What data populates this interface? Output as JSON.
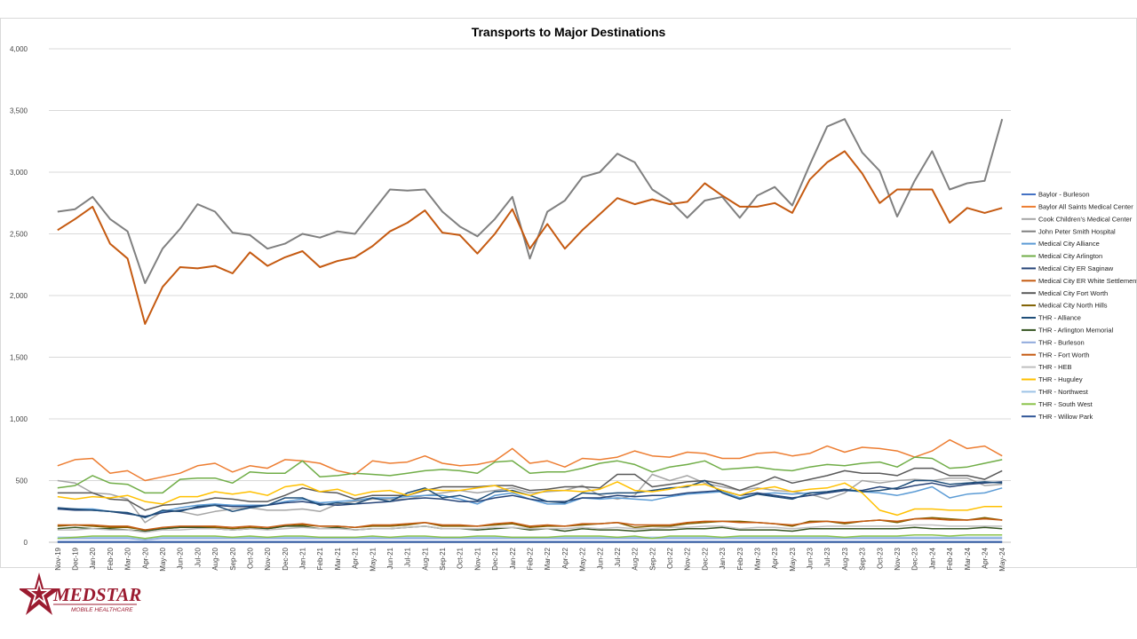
{
  "chart_data": {
    "type": "line",
    "title": "Transports to Major Destinations",
    "ylim": [
      0,
      4000
    ],
    "yticks": [
      "0",
      "500",
      "1,000",
      "1,500",
      "2,000",
      "2,500",
      "3,000",
      "3,500",
      "4,000"
    ],
    "ytick_values": [
      0,
      500,
      1000,
      1500,
      2000,
      2500,
      3000,
      3500,
      4000
    ],
    "grid": true,
    "legend_position": "right",
    "categories": [
      "Nov-19",
      "Dec-19",
      "Jan-20",
      "Feb-20",
      "Mar-20",
      "Apr-20",
      "May-20",
      "Jun-20",
      "Jul-20",
      "Aug-20",
      "Sep-20",
      "Oct-20",
      "Nov-20",
      "Dec-20",
      "Jan-21",
      "Feb-21",
      "Mar-21",
      "Apr-21",
      "May-21",
      "Jun-21",
      "Jul-21",
      "Aug-21",
      "Sep-21",
      "Oct-21",
      "Nov-21",
      "Dec-21",
      "Jan-22",
      "Feb-22",
      "Mar-22",
      "Apr-22",
      "May-22",
      "Jun-22",
      "Jul-22",
      "Aug-22",
      "Sep-22",
      "Oct-22",
      "Nov-22",
      "Dec-22",
      "Jan-23",
      "Feb-23",
      "Mar-23",
      "Apr-23",
      "May-23",
      "Jun-23",
      "Jul-23",
      "Aug-23",
      "Sep-23",
      "Oct-23",
      "Nov-23",
      "Dec-23",
      "Jan-24",
      "Feb-24",
      "Mar-24",
      "Apr-24",
      "May-24"
    ],
    "series": [
      {
        "name": "Baylor - Burleson",
        "color": "#4472c4",
        "width": 1.5,
        "values": [
          5,
          5,
          5,
          5,
          5,
          5,
          5,
          5,
          5,
          5,
          5,
          5,
          5,
          5,
          5,
          5,
          5,
          5,
          5,
          5,
          5,
          5,
          5,
          5,
          5,
          5,
          5,
          5,
          5,
          5,
          5,
          5,
          5,
          5,
          5,
          5,
          5,
          5,
          5,
          5,
          5,
          5,
          5,
          5,
          5,
          5,
          5,
          5,
          5,
          5,
          5,
          5,
          5,
          5,
          5
        ]
      },
      {
        "name": "Baylor All Saints Medical Center",
        "color": "#ed7d31",
        "width": 1.5,
        "values": [
          620,
          670,
          680,
          560,
          580,
          500,
          530,
          560,
          620,
          640,
          570,
          620,
          600,
          670,
          660,
          640,
          580,
          550,
          660,
          640,
          650,
          700,
          640,
          620,
          630,
          660,
          760,
          640,
          660,
          610,
          680,
          670,
          690,
          740,
          700,
          690,
          730,
          720,
          680,
          680,
          720,
          730,
          700,
          720,
          780,
          730,
          770,
          760,
          740,
          690,
          740,
          830,
          760,
          780,
          700
        ]
      },
      {
        "name": "Cook Children's Medical Center",
        "color": "#a5a5a5",
        "width": 1.5,
        "values": [
          500,
          480,
          400,
          390,
          350,
          160,
          250,
          250,
          220,
          250,
          270,
          280,
          260,
          260,
          270,
          250,
          310,
          330,
          350,
          350,
          350,
          380,
          400,
          420,
          400,
          420,
          440,
          400,
          410,
          420,
          460,
          380,
          350,
          380,
          550,
          500,
          540,
          480,
          450,
          420,
          440,
          420,
          410,
          390,
          350,
          400,
          500,
          480,
          500,
          510,
          500,
          520,
          520,
          460,
          470
        ]
      },
      {
        "name": "John Peter Smith Hospital",
        "color": "#808080",
        "width": 2,
        "values": [
          2680,
          2700,
          2800,
          2620,
          2520,
          2100,
          2380,
          2540,
          2740,
          2680,
          2510,
          2490,
          2380,
          2420,
          2500,
          2470,
          2520,
          2500,
          2680,
          2860,
          2850,
          2860,
          2680,
          2560,
          2480,
          2620,
          2800,
          2300,
          2680,
          2770,
          2960,
          3000,
          3150,
          3080,
          2860,
          2770,
          2630,
          2770,
          2800,
          2630,
          2810,
          2880,
          2730,
          3060,
          3370,
          3430,
          3160,
          3010,
          2640,
          2930,
          3170,
          2860,
          2910,
          2930,
          3430
        ]
      },
      {
        "name": "Medical City Alliance",
        "color": "#5b9bd5",
        "width": 1.5,
        "values": [
          270,
          270,
          270,
          250,
          240,
          200,
          250,
          280,
          300,
          310,
          300,
          300,
          300,
          330,
          350,
          320,
          330,
          340,
          360,
          360,
          370,
          380,
          380,
          350,
          310,
          380,
          400,
          350,
          310,
          310,
          360,
          350,
          360,
          350,
          340,
          370,
          390,
          400,
          410,
          360,
          390,
          400,
          390,
          400,
          400,
          420,
          410,
          400,
          380,
          410,
          450,
          360,
          390,
          400,
          440
        ]
      },
      {
        "name": "Medical City Arlington",
        "color": "#70ad47",
        "width": 1.5,
        "values": [
          440,
          460,
          540,
          480,
          470,
          400,
          400,
          510,
          520,
          520,
          480,
          570,
          560,
          560,
          660,
          530,
          540,
          560,
          550,
          540,
          560,
          580,
          590,
          580,
          560,
          650,
          660,
          560,
          570,
          570,
          600,
          640,
          660,
          630,
          570,
          610,
          630,
          660,
          590,
          600,
          610,
          590,
          580,
          610,
          630,
          620,
          640,
          650,
          610,
          690,
          680,
          600,
          610,
          640,
          670
        ]
      },
      {
        "name": "Medical City ER Saginaw",
        "color": "#264478",
        "width": 1.5,
        "values": [
          270,
          260,
          260,
          250,
          230,
          210,
          240,
          260,
          280,
          300,
          290,
          290,
          300,
          320,
          330,
          310,
          300,
          310,
          320,
          330,
          350,
          360,
          350,
          330,
          330,
          360,
          380,
          350,
          330,
          330,
          360,
          360,
          380,
          370,
          380,
          380,
          400,
          410,
          420,
          380,
          400,
          380,
          360,
          380,
          400,
          420,
          420,
          450,
          430,
          460,
          480,
          450,
          470,
          480,
          490
        ]
      },
      {
        "name": "Medical City ER White Settlement",
        "color": "#c55a11",
        "width": 2,
        "values": [
          2530,
          2620,
          2720,
          2420,
          2300,
          1770,
          2070,
          2230,
          2220,
          2240,
          2180,
          2350,
          2240,
          2310,
          2360,
          2230,
          2280,
          2310,
          2400,
          2520,
          2590,
          2690,
          2510,
          2490,
          2340,
          2500,
          2700,
          2380,
          2580,
          2380,
          2530,
          2660,
          2790,
          2740,
          2780,
          2740,
          2760,
          2910,
          2810,
          2720,
          2720,
          2750,
          2670,
          2940,
          3080,
          3170,
          2990,
          2750,
          2860,
          2860,
          2860,
          2590,
          2710,
          2670,
          2710
        ]
      },
      {
        "name": "Medical City Fort Worth",
        "color": "#595959",
        "width": 1.5,
        "values": [
          400,
          400,
          400,
          350,
          340,
          260,
          300,
          310,
          330,
          360,
          350,
          330,
          330,
          380,
          440,
          410,
          400,
          350,
          380,
          380,
          380,
          420,
          450,
          450,
          450,
          460,
          460,
          420,
          430,
          450,
          450,
          440,
          550,
          550,
          450,
          470,
          490,
          500,
          470,
          420,
          470,
          530,
          480,
          510,
          540,
          580,
          560,
          560,
          540,
          600,
          600,
          540,
          540,
          510,
          580
        ]
      },
      {
        "name": "Medical City North Hills",
        "color": "#7f6000",
        "width": 1.5,
        "values": [
          130,
          140,
          130,
          120,
          120,
          100,
          110,
          120,
          120,
          120,
          110,
          120,
          110,
          130,
          140,
          130,
          130,
          120,
          130,
          130,
          140,
          160,
          130,
          130,
          130,
          140,
          150,
          120,
          130,
          130,
          140,
          150,
          160,
          120,
          130,
          130,
          150,
          160,
          170,
          170,
          160,
          150,
          130,
          170,
          170,
          150,
          170,
          180,
          160,
          190,
          200,
          190,
          180,
          200,
          180
        ]
      },
      {
        "name": "THR - Alliance",
        "color": "#1f4e79",
        "width": 1.5,
        "values": [
          280,
          270,
          260,
          250,
          240,
          200,
          260,
          250,
          290,
          300,
          250,
          280,
          300,
          360,
          360,
          300,
          320,
          310,
          360,
          330,
          400,
          440,
          360,
          380,
          340,
          410,
          420,
          380,
          330,
          320,
          400,
          390,
          400,
          400,
          420,
          440,
          450,
          500,
          400,
          350,
          390,
          370,
          350,
          400,
          410,
          430,
          410,
          420,
          440,
          500,
          500,
          470,
          480,
          490,
          480
        ]
      },
      {
        "name": "THR - Arlington Memorial",
        "color": "#375623",
        "width": 1.5,
        "values": [
          110,
          120,
          110,
          110,
          100,
          90,
          110,
          120,
          120,
          110,
          100,
          110,
          110,
          130,
          130,
          110,
          120,
          100,
          110,
          110,
          120,
          130,
          110,
          110,
          100,
          110,
          120,
          100,
          110,
          90,
          110,
          100,
          100,
          90,
          100,
          100,
          110,
          110,
          120,
          100,
          100,
          100,
          90,
          110,
          110,
          110,
          110,
          110,
          110,
          120,
          110,
          110,
          110,
          120,
          110
        ]
      },
      {
        "name": "THR - Burleson",
        "color": "#8faadc",
        "width": 1.5,
        "values": [
          30,
          30,
          30,
          30,
          30,
          20,
          30,
          30,
          30,
          30,
          30,
          30,
          30,
          30,
          30,
          30,
          30,
          30,
          30,
          30,
          30,
          30,
          30,
          30,
          30,
          30,
          30,
          30,
          30,
          30,
          30,
          30,
          30,
          30,
          30,
          30,
          30,
          30,
          30,
          30,
          30,
          30,
          30,
          30,
          30,
          30,
          30,
          30,
          30,
          30,
          30,
          30,
          30,
          30,
          30
        ]
      },
      {
        "name": "THR - Fort Worth",
        "color": "#c55a11",
        "width": 1.5,
        "values": [
          140,
          140,
          140,
          130,
          130,
          100,
          120,
          130,
          130,
          130,
          120,
          130,
          120,
          140,
          150,
          130,
          130,
          120,
          140,
          140,
          150,
          160,
          140,
          140,
          130,
          150,
          160,
          130,
          140,
          130,
          150,
          150,
          160,
          140,
          140,
          140,
          160,
          170,
          170,
          160,
          160,
          150,
          140,
          160,
          170,
          160,
          170,
          180,
          170,
          190,
          190,
          180,
          180,
          190,
          180
        ]
      },
      {
        "name": "THR - HEB",
        "color": "#bfbfbf",
        "width": 1.5,
        "values": [
          100,
          100,
          110,
          100,
          100,
          80,
          100,
          100,
          110,
          110,
          100,
          110,
          100,
          110,
          120,
          110,
          110,
          100,
          110,
          110,
          120,
          130,
          110,
          110,
          110,
          120,
          120,
          110,
          110,
          110,
          120,
          110,
          120,
          110,
          110,
          120,
          120,
          130,
          130,
          110,
          120,
          120,
          110,
          120,
          130,
          130,
          130,
          130,
          130,
          140,
          140,
          130,
          130,
          130,
          130
        ]
      },
      {
        "name": "THR - Huguley",
        "color": "#ffc000",
        "width": 1.5,
        "values": [
          370,
          350,
          370,
          360,
          380,
          330,
          310,
          370,
          370,
          410,
          390,
          410,
          380,
          450,
          470,
          410,
          430,
          380,
          410,
          420,
          380,
          430,
          420,
          420,
          440,
          460,
          410,
          380,
          420,
          420,
          410,
          430,
          490,
          420,
          410,
          430,
          460,
          470,
          420,
          380,
          430,
          450,
          410,
          430,
          440,
          480,
          400,
          260,
          220,
          270,
          270,
          260,
          260,
          290,
          290
        ]
      },
      {
        "name": "THR - Northwest",
        "color": "#9dc3e6",
        "width": 1.5,
        "values": [
          40,
          40,
          40,
          40,
          40,
          30,
          40,
          40,
          40,
          40,
          40,
          40,
          40,
          40,
          40,
          40,
          40,
          40,
          40,
          40,
          40,
          40,
          40,
          40,
          40,
          40,
          40,
          40,
          40,
          40,
          40,
          40,
          40,
          40,
          40,
          40,
          40,
          40,
          40,
          40,
          40,
          40,
          40,
          40,
          40,
          40,
          40,
          40,
          40,
          40,
          40,
          40,
          40,
          40,
          40
        ]
      },
      {
        "name": "THR - South West",
        "color": "#8bc34a",
        "width": 1.5,
        "values": [
          30,
          40,
          50,
          50,
          50,
          30,
          50,
          50,
          50,
          50,
          40,
          50,
          40,
          50,
          50,
          40,
          40,
          40,
          50,
          40,
          50,
          50,
          40,
          40,
          50,
          50,
          40,
          40,
          40,
          50,
          50,
          50,
          40,
          50,
          30,
          50,
          50,
          50,
          40,
          50,
          50,
          50,
          50,
          50,
          50,
          40,
          50,
          50,
          50,
          60,
          60,
          50,
          60,
          60,
          60
        ]
      },
      {
        "name": "THR - Willow Park",
        "color": "#2f5597",
        "width": 1.5,
        "values": [
          0,
          0,
          0,
          0,
          0,
          0,
          0,
          0,
          0,
          0,
          0,
          0,
          0,
          0,
          0,
          0,
          0,
          0,
          0,
          0,
          0,
          0,
          0,
          0,
          0,
          0,
          0,
          0,
          0,
          0,
          0,
          0,
          0,
          0,
          0,
          0,
          0,
          0,
          0,
          0,
          0,
          0,
          0,
          0,
          0,
          0,
          0,
          0,
          0,
          0,
          0,
          0,
          0,
          0,
          0
        ]
      }
    ]
  },
  "logo": {
    "brand": "MEDSTAR",
    "tagline": "MOBILE HEALTHCARE",
    "color": "#9b1b30"
  }
}
